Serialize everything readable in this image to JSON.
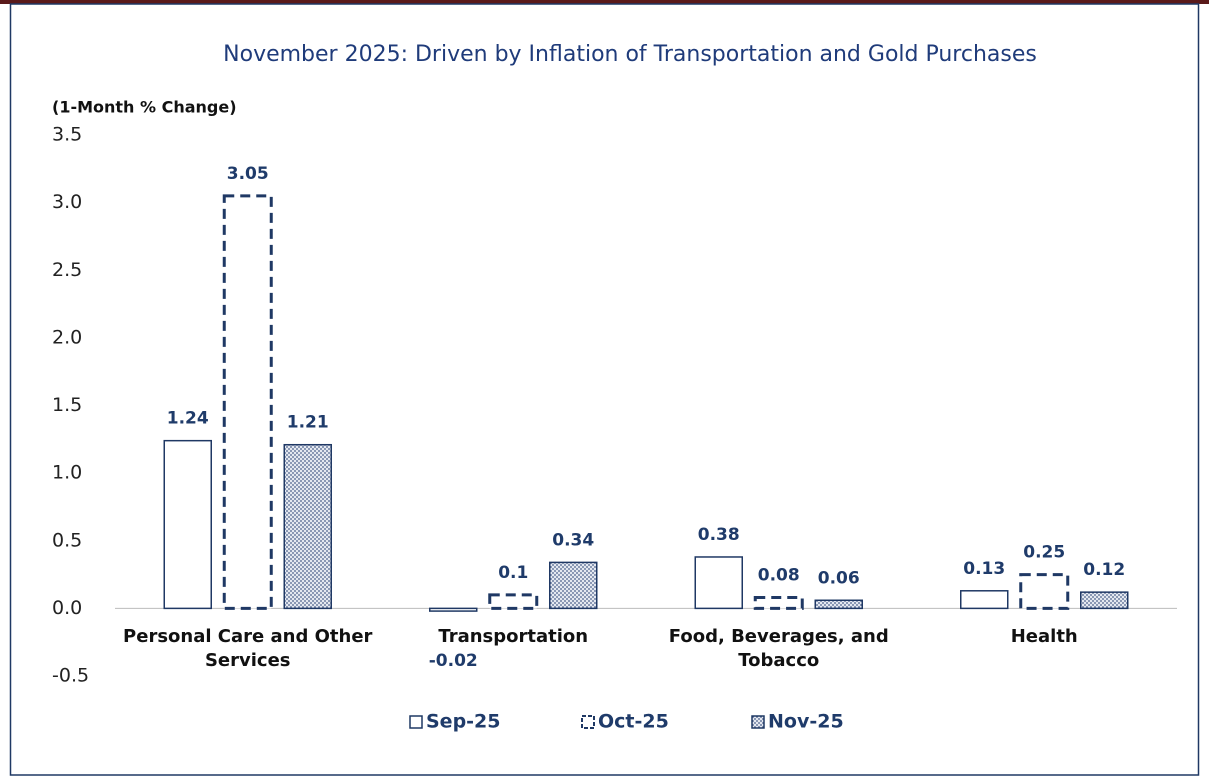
{
  "chart_data": {
    "type": "bar",
    "title": "November 2025: Driven by Inflation of Transportation and Gold Purchases",
    "y_label": "(1-Month % Change)",
    "categories": [
      "Personal Care and Other Services",
      "Transportation",
      "Food, Beverages, and Tobacco",
      "Health"
    ],
    "series": [
      {
        "name": "Sep-25",
        "color": "#1f3864",
        "style": "outline",
        "values": [
          1.24,
          -0.02,
          0.38,
          0.13
        ]
      },
      {
        "name": "Oct-25",
        "color": "#1f3864",
        "style": "dashed",
        "values": [
          3.05,
          0.1,
          0.08,
          0.25
        ]
      },
      {
        "name": "Nov-25",
        "color": "#1f3864",
        "style": "dotted",
        "values": [
          1.21,
          0.34,
          0.06,
          0.12
        ]
      }
    ],
    "ylim": [
      -0.5,
      3.5
    ],
    "yticks": [
      -0.5,
      {
        "value": 0,
        "label": "0.0"
      },
      0.5,
      {
        "value": 1,
        "label": "1.0"
      },
      1.5,
      {
        "value": 2,
        "label": "2.0"
      },
      2.5,
      {
        "value": 3,
        "label": "3.0"
      },
      3.5
    ],
    "legend": "bottom"
  }
}
